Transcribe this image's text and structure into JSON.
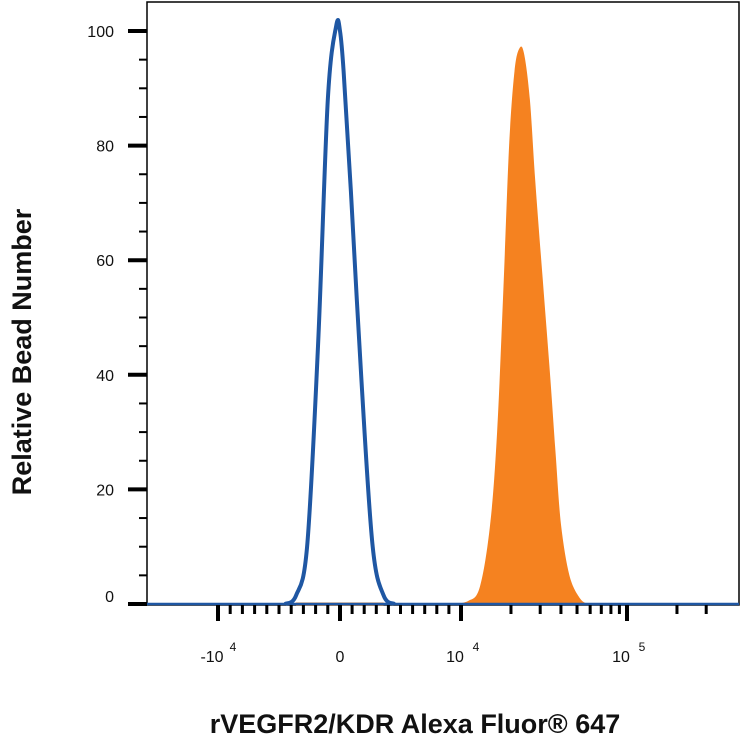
{
  "chart_data": {
    "type": "area",
    "title": "",
    "xlabel": "rVEGFR2/KDR Alexa Fluor® 647",
    "ylabel": "Relative Bead Number",
    "x_scale": "logicle (biexponential)",
    "xlim": [
      -30000,
      300000
    ],
    "ylim": [
      0,
      105
    ],
    "yticks": [
      0,
      20,
      40,
      60,
      80,
      100
    ],
    "ytick_labels": [
      "0",
      "20",
      "40",
      "60",
      "80",
      "100"
    ],
    "xticks": [
      {
        "value": -10000,
        "base": "-10",
        "exp": "4"
      },
      {
        "value": 0,
        "base": "0",
        "exp": ""
      },
      {
        "value": 10000,
        "base": "10",
        "exp": "4"
      },
      {
        "value": 100000,
        "base": "10",
        "exp": "5"
      }
    ],
    "grid": false,
    "series": [
      {
        "style": "outline",
        "color": "#1f57a3",
        "x": [
          -4500,
          -3600,
          -2700,
          -1800,
          -1000,
          -300,
          0,
          300,
          900,
          1800,
          2700,
          3600,
          4500
        ],
        "y": [
          0,
          1.5,
          10,
          45,
          88,
          101,
          100,
          93,
          72,
          38,
          10,
          1.5,
          0
        ]
      },
      {
        "style": "filled",
        "color": "#f58220",
        "x": [
          9000,
          11000,
          13000,
          15000,
          16500,
          18000,
          19500,
          21000,
          22500,
          24000,
          26000,
          28000,
          31000,
          34000,
          37000,
          40000,
          45000,
          52000,
          58000
        ],
        "y": [
          0,
          0.5,
          3,
          14,
          30,
          55,
          80,
          93,
          97,
          96,
          88,
          74,
          57,
          42,
          27,
          14,
          5,
          1,
          0
        ]
      }
    ],
    "colors": {
      "outline": "#1f57a3",
      "filled": "#f58220",
      "axis": "#000000"
    }
  }
}
